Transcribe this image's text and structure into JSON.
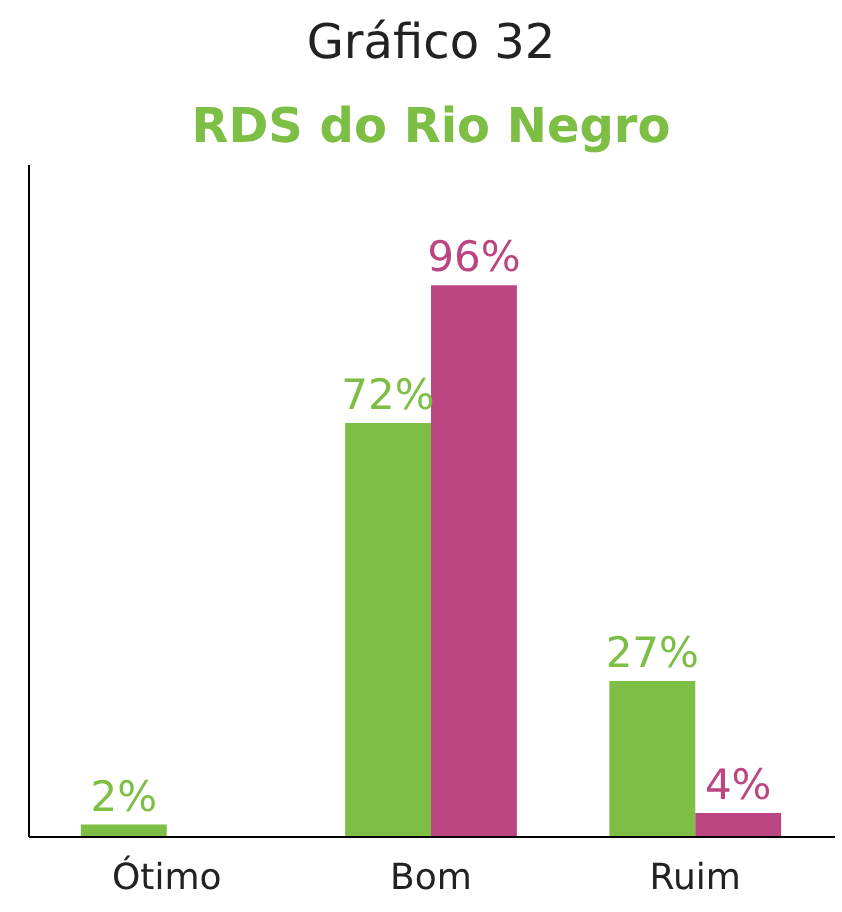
{
  "chart_data": {
    "type": "bar",
    "title": "Gráfico 32",
    "subtitle": "RDS do Rio Negro",
    "categories": [
      "Ótimo",
      "Bom",
      "Ruim"
    ],
    "series": [
      {
        "color": "#7dbe45",
        "values": [
          2,
          72,
          27
        ],
        "value_labels": [
          "2%",
          "72%",
          "27%"
        ]
      },
      {
        "color": "#bc4682",
        "values": [
          null,
          96,
          4
        ],
        "value_labels": [
          null,
          "96%",
          "4%"
        ]
      }
    ],
    "grid": false,
    "legend": false
  }
}
